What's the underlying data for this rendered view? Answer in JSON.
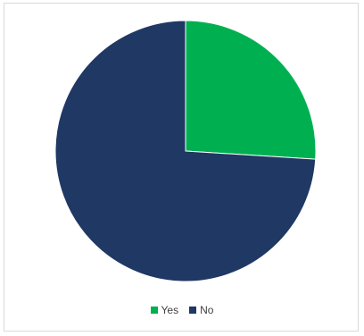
{
  "chart_data": {
    "type": "pie",
    "title": "",
    "start_angle_deg": 0,
    "direction": "clockwise",
    "legend_position": "bottom",
    "slices": [
      {
        "label": "Yes",
        "value": 26,
        "color": "#00b050"
      },
      {
        "label": "No",
        "value": 74,
        "color": "#1f3864"
      }
    ]
  }
}
